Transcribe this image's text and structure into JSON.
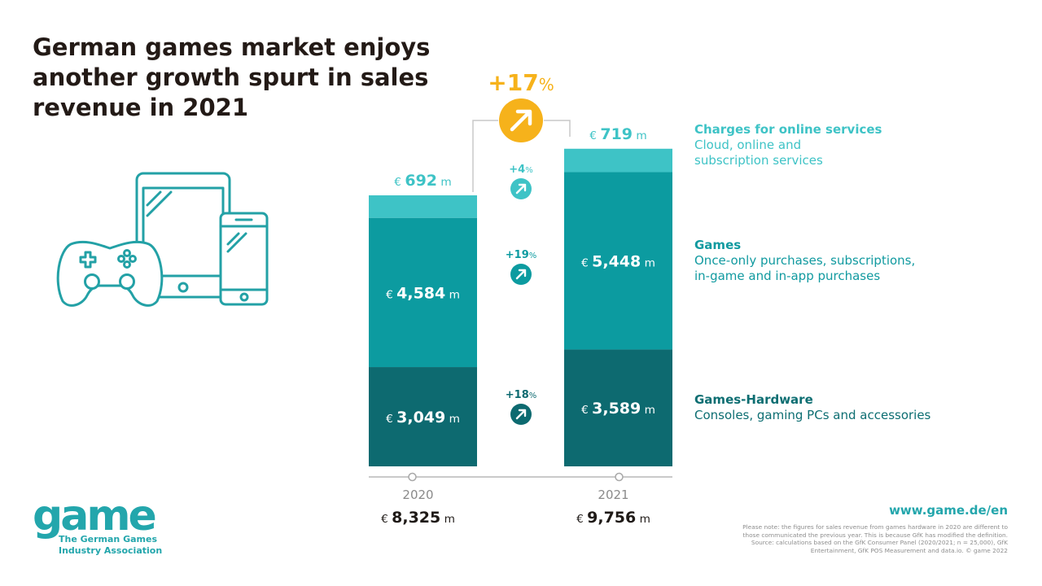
{
  "title_lines": [
    "German games market enjoys",
    "another growth spurt in sales",
    "revenue in 2021"
  ],
  "total_change": {
    "number": "+17",
    "unit": "%"
  },
  "chart_data": {
    "type": "bar",
    "stacked": true,
    "categories": [
      "2020",
      "2021"
    ],
    "unit_prefix": "€",
    "unit_suffix": "m",
    "series": [
      {
        "key": "hardware",
        "values": [
          3049,
          3589
        ],
        "labels": [
          "3,049",
          "3,589"
        ],
        "change_number": "+18",
        "color": "#0d6a70"
      },
      {
        "key": "games",
        "values": [
          4584,
          5448
        ],
        "labels": [
          "4,584",
          "5,448"
        ],
        "change_number": "+19",
        "color": "#0c9ba0"
      },
      {
        "key": "online",
        "values": [
          692,
          719
        ],
        "labels": [
          "692",
          "719"
        ],
        "change_number": "+4",
        "color": "#3ec3c6"
      }
    ],
    "totals": [
      "8,325",
      "9,756"
    ],
    "change_unit": "%",
    "accent_color": "#f6b21b"
  },
  "legend": [
    {
      "id": "leg-online",
      "head": "Charges for online services",
      "sub": [
        "Cloud, online and",
        "subscription services"
      ]
    },
    {
      "id": "leg-games",
      "head": "Games",
      "sub": [
        "Once-only purchases, subscriptions,",
        "in-game and in-app purchases"
      ]
    },
    {
      "id": "leg-hw",
      "head": "Games-Hardware",
      "sub": [
        "Consoles, gaming PCs and accessories"
      ]
    }
  ],
  "logo": {
    "word": "game",
    "tagline": [
      "The German Games",
      "Industry Association"
    ]
  },
  "url": "www.game.de/en",
  "note_lines": [
    "Please note: the figures for sales revenue from games hardware in 2020 are different to",
    "those communicated the previous year. This is because GfK has modified the definition.",
    "Source: calculations based on the GfK Consumer Panel (2020/2021; n = 25,000), GfK",
    "Entertainment, GfK POS Measurement and data.io. © game 2022"
  ]
}
